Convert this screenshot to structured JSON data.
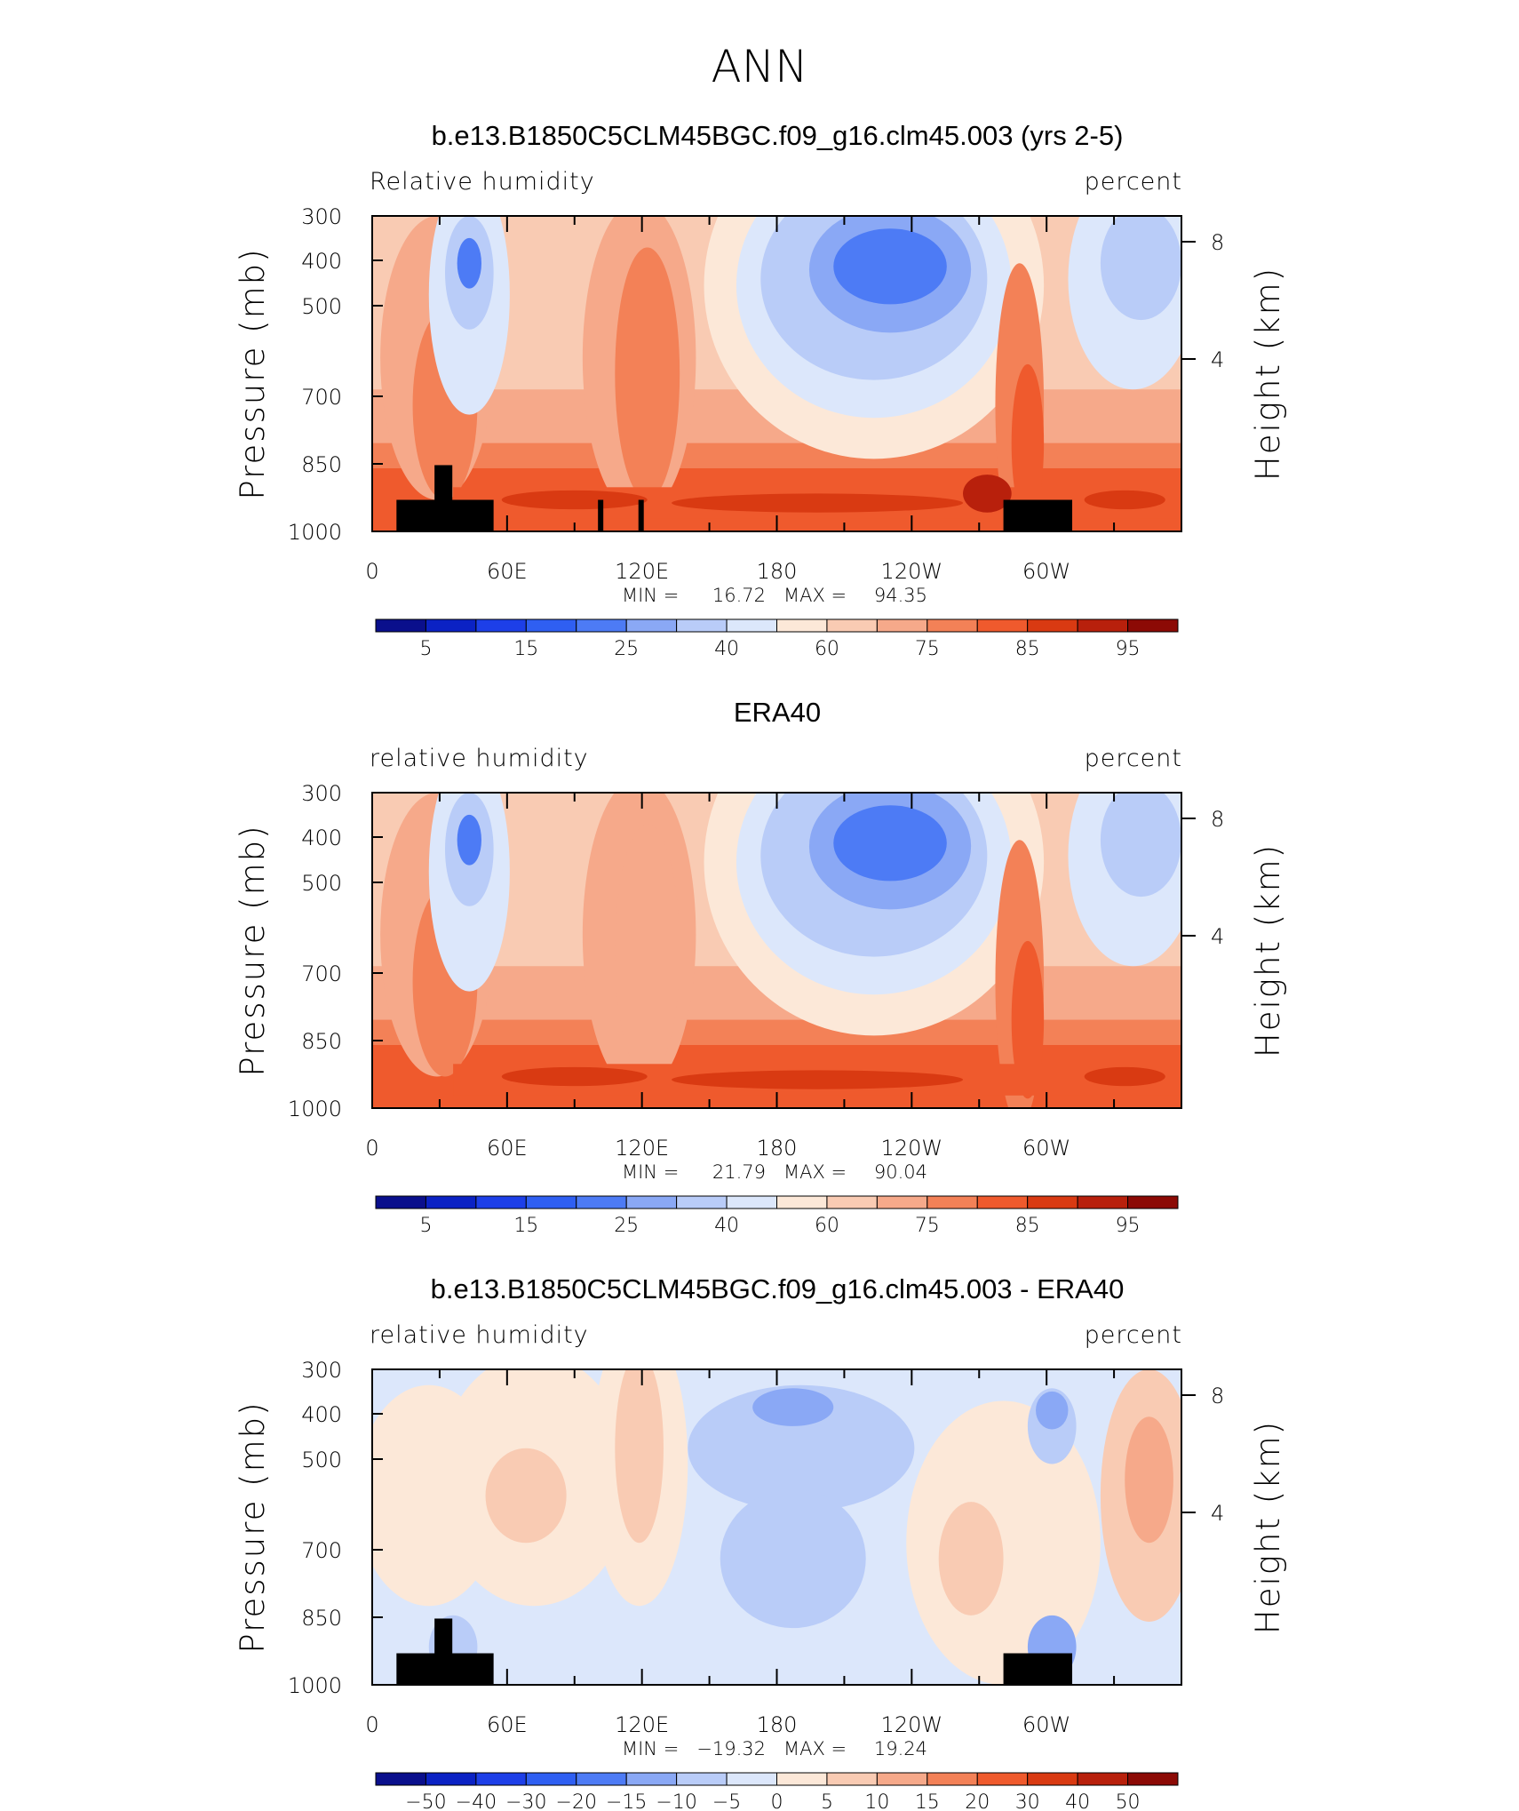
{
  "page_title": "ANN",
  "chart_data": [
    {
      "type": "heatmap",
      "title": "b.e13.B1850C5CLM45BGC.f09_g16.clm45.003 (yrs 2-5)",
      "left_label": "Relative humidity",
      "right_label": "percent",
      "ylabel": "Pressure (mb)",
      "ylabel_right": "Height (km)",
      "yticks": [
        "300",
        "400",
        "500",
        "700",
        "850",
        "1000"
      ],
      "yticks_right": [
        "8",
        "4"
      ],
      "xticks": [
        "0",
        "60E",
        "120E",
        "180",
        "120W",
        "60W"
      ],
      "stats": {
        "min_label": "MIN =",
        "min": "16.72",
        "max_label": "MAX =",
        "max": "94.35"
      },
      "colorbar_labels": [
        "5",
        "15",
        "25",
        "40",
        "60",
        "75",
        "85",
        "95"
      ]
    },
    {
      "type": "heatmap",
      "title": "ERA40",
      "left_label": "relative humidity",
      "right_label": "percent",
      "ylabel": "Pressure (mb)",
      "ylabel_right": "Height (km)",
      "yticks": [
        "300",
        "400",
        "500",
        "700",
        "850",
        "1000"
      ],
      "yticks_right": [
        "8",
        "4"
      ],
      "xticks": [
        "0",
        "60E",
        "120E",
        "180",
        "120W",
        "60W"
      ],
      "stats": {
        "min_label": "MIN =",
        "min": "21.79",
        "max_label": "MAX =",
        "max": "90.04"
      },
      "colorbar_labels": [
        "5",
        "15",
        "25",
        "40",
        "60",
        "75",
        "85",
        "95"
      ]
    },
    {
      "type": "heatmap",
      "title": "b.e13.B1850C5CLM45BGC.f09_g16.clm45.003 - ERA40",
      "left_label": "relative humidity",
      "right_label": "percent",
      "ylabel": "Pressure (mb)",
      "ylabel_right": "Height (km)",
      "yticks": [
        "300",
        "400",
        "500",
        "700",
        "850",
        "1000"
      ],
      "yticks_right": [
        "8",
        "4"
      ],
      "xticks": [
        "0",
        "60E",
        "120E",
        "180",
        "120W",
        "60W"
      ],
      "stats": {
        "min_label": "MIN =",
        "min": "−19.32",
        "max_label": "MAX =",
        "max": "19.24"
      },
      "colorbar_labels": [
        "−50",
        "−40",
        "−30",
        "−20",
        "−15",
        "−10",
        "−5",
        "0",
        "5",
        "10",
        "15",
        "20",
        "30",
        "40",
        "50"
      ]
    }
  ],
  "colors": [
    "#0a0f8c",
    "#0b22c4",
    "#1d3fe8",
    "#2f5ff2",
    "#4d7bf5",
    "#8aa8f5",
    "#b9ccf8",
    "#dce7fb",
    "#fce8d8",
    "#f9cbb3",
    "#f6a98a",
    "#f38157",
    "#ef5a2d",
    "#d93a12",
    "#b8200c",
    "#8c0a05"
  ]
}
